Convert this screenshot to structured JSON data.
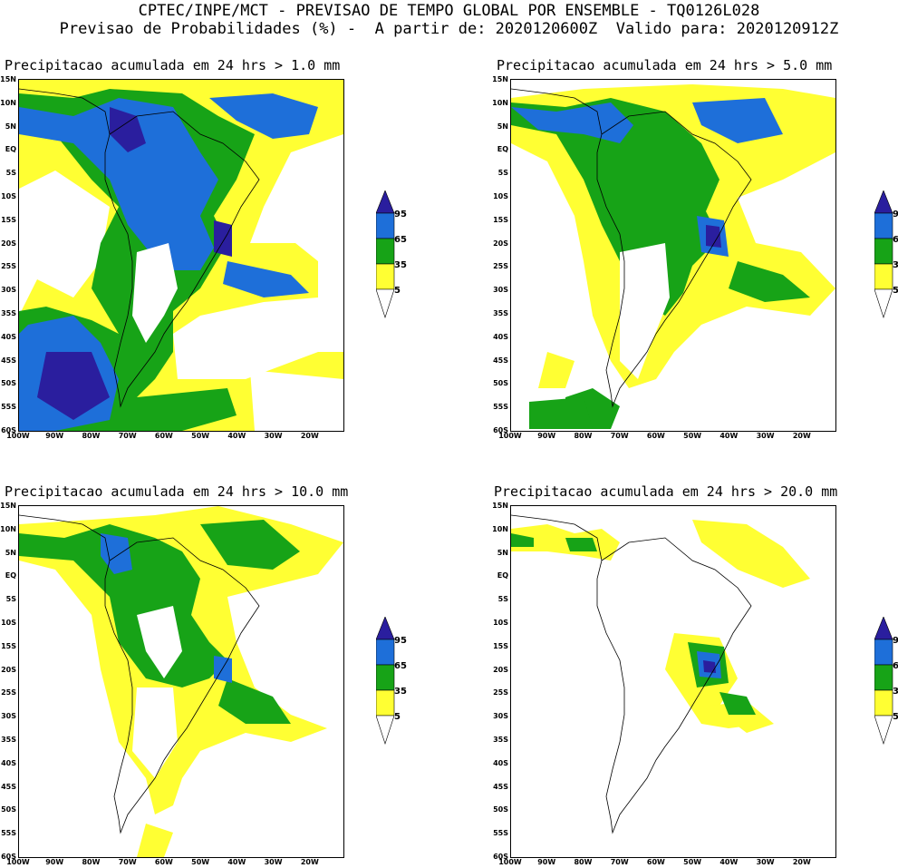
{
  "header": {
    "line1": "CPTEC/INPE/MCT - PREVISAO DE TEMPO GLOBAL POR ENSEMBLE - TQ0126L028",
    "line2": "Previsao de Probabilidades (%) -  A partir de: 2020120600Z  Valido para: 2020120912Z"
  },
  "panels": [
    {
      "title": "Precipitacao acumulada em 24 hrs > 1.0 mm",
      "threshold": 1.0
    },
    {
      "title": "Precipitacao acumulada em 24 hrs > 5.0 mm",
      "threshold": 5.0
    },
    {
      "title": "Precipitacao acumulada em 24 hrs > 10.0 mm",
      "threshold": 10.0
    },
    {
      "title": "Precipitacao acumulada em 24 hrs > 20.0 mm",
      "threshold": 20.0
    }
  ],
  "lat_labels": [
    "15N",
    "10N",
    "5N",
    "EQ",
    "5S",
    "10S",
    "15S",
    "20S",
    "25S",
    "30S",
    "35S",
    "40S",
    "45S",
    "50S",
    "55S",
    "60S"
  ],
  "lon_labels": [
    "100W",
    "90W",
    "80W",
    "70W",
    "60W",
    "50W",
    "40W",
    "30W",
    "20W"
  ],
  "colorbar": {
    "levels": [
      "95",
      "65",
      "35",
      "5"
    ],
    "colors": {
      "yellow": "#ffff33",
      "green": "#17a317",
      "blue": "#1e6fd9",
      "darkblue": "#2a1e9e",
      "white": "#ffffff"
    }
  }
}
